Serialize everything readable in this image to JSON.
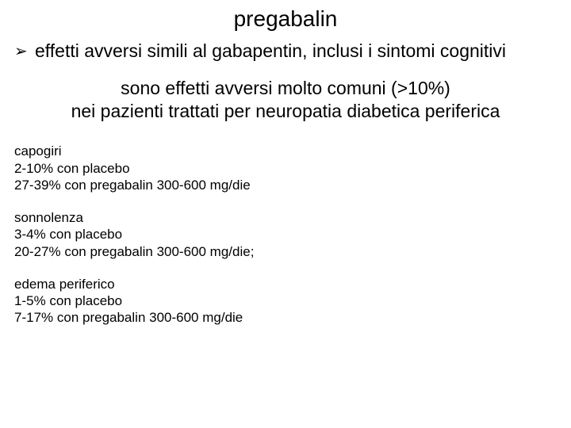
{
  "title": "pregabalin",
  "bullet": {
    "marker": "➢",
    "text": "effetti avversi simili al gabapentin, inclusi i sintomi cognitivi"
  },
  "center": {
    "line1": "sono effetti avversi molto comuni (>10%)",
    "line2": "nei pazienti trattati per neuropatia diabetica periferica"
  },
  "adverse_events": [
    {
      "name": "capogiri",
      "placebo": "2-10% con placebo",
      "drug": "27-39% con pregabalin 300-600 mg/die"
    },
    {
      "name": "sonnolenza",
      "placebo": "3-4% con placebo",
      "drug": "20-27% con pregabalin 300-600 mg/die;"
    },
    {
      "name": "edema periferico",
      "placebo": "1-5% con placebo",
      "drug": "7-17% con pregabalin 300-600 mg/die"
    }
  ],
  "colors": {
    "background": "#ffffff",
    "text": "#000000"
  },
  "typography": {
    "font_family": "Comic Sans MS",
    "title_fontsize_pt": 21,
    "body_fontsize_pt": 17,
    "small_fontsize_pt": 13
  }
}
